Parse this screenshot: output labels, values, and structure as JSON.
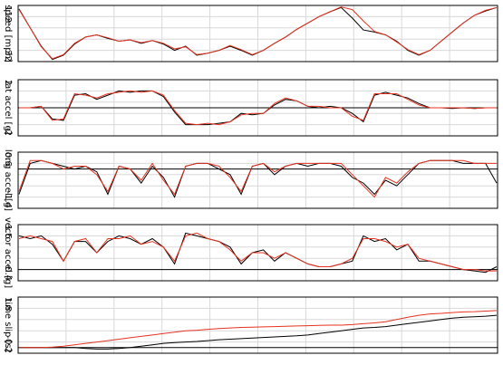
{
  "chart_data": [
    {
      "type": "line",
      "y_label": "speed [mph]",
      "ylim": [
        32,
        112
      ],
      "yticks": [
        32,
        112
      ],
      "grid": true,
      "zero_line": false,
      "series": [
        {
          "color": "#000000",
          "values": [
            107,
            80,
            54,
            35,
            41,
            57,
            67,
            70,
            65,
            61,
            63,
            58,
            62,
            57,
            48,
            54,
            41,
            44,
            48,
            54,
            48,
            41,
            48,
            58,
            67,
            78,
            87,
            96,
            103,
            109,
            94,
            77,
            74,
            70,
            61,
            48,
            41,
            48,
            61,
            74,
            87,
            98,
            104,
            109
          ]
        },
        {
          "color": "#e8321e",
          "values": [
            106,
            80,
            53,
            36,
            42,
            58,
            67,
            70,
            66,
            61,
            63,
            59,
            62,
            58,
            50,
            53,
            42,
            44,
            48,
            55,
            49,
            42,
            48,
            58,
            67,
            78,
            87,
            96,
            103,
            110,
            106,
            90,
            75,
            70,
            60,
            49,
            42,
            48,
            61,
            74,
            87,
            98,
            105,
            109
          ]
        }
      ]
    },
    {
      "type": "line",
      "y_label": "lat accel [g]",
      "ylim": [
        -2,
        2
      ],
      "yticks": [
        -2,
        2
      ],
      "grid": true,
      "zero_line": true,
      "series": [
        {
          "color": "#000000",
          "values": [
            0,
            0,
            0.1,
            -0.8,
            -0.9,
            0.9,
            1.0,
            0.6,
            0.9,
            1.2,
            1.1,
            1.2,
            1.2,
            0.8,
            -0.3,
            -1.2,
            -1.2,
            -1.2,
            -1.1,
            -1.0,
            -0.4,
            -0.5,
            -0.4,
            0.2,
            0.6,
            0.5,
            0.1,
            0.0,
            0.1,
            0.0,
            -0.4,
            -1.0,
            0.9,
            1.1,
            0.9,
            0.7,
            0.3,
            0.0,
            0.0,
            -0.05,
            0,
            -0.05,
            0,
            0
          ]
        },
        {
          "color": "#e8321e",
          "values": [
            0,
            0,
            0.1,
            -0.9,
            -0.8,
            1.0,
            0.9,
            0.7,
            1.0,
            1.1,
            1.2,
            1.1,
            1.2,
            0.9,
            -0.2,
            -1.1,
            -1.2,
            -1.1,
            -1.2,
            -1.0,
            -0.5,
            -0.4,
            -0.4,
            0.3,
            0.7,
            0.5,
            0.1,
            0.1,
            0.0,
            0.0,
            -0.6,
            -0.9,
            1.0,
            1.0,
            1.0,
            0.6,
            0.2,
            0.0,
            0.0,
            0.0,
            0,
            -0.05,
            0,
            0.0
          ]
        }
      ]
    },
    {
      "type": "line",
      "y_label": "long accel [g]",
      "ylim": [
        -1.4,
        0.6
      ],
      "yticks": [
        -1.4,
        0.6
      ],
      "grid": true,
      "zero_line": true,
      "series": [
        {
          "color": "#000000",
          "values": [
            -0.9,
            0.2,
            0.3,
            0.2,
            0.1,
            0.0,
            0.1,
            -0.1,
            -0.9,
            0.1,
            0.0,
            -0.5,
            0.1,
            -0.3,
            -1.0,
            0.1,
            0.2,
            0.2,
            0.0,
            -0.2,
            -0.9,
            0.1,
            0.2,
            -0.2,
            0.1,
            0.2,
            0.1,
            0.2,
            0.2,
            0.1,
            -0.3,
            -0.5,
            -0.9,
            -0.4,
            -0.6,
            -0.2,
            0.2,
            0.3,
            0.3,
            0.3,
            0.2,
            0.2,
            0.2,
            -0.5
          ]
        },
        {
          "color": "#e8321e",
          "values": [
            -0.8,
            0.3,
            0.3,
            0.2,
            0.0,
            0.1,
            0.1,
            -0.2,
            -0.8,
            0.1,
            0.0,
            -0.4,
            0.2,
            -0.4,
            -0.9,
            0.1,
            0.2,
            0.2,
            0.1,
            -0.3,
            -0.8,
            0.1,
            0.2,
            -0.1,
            0.1,
            0.2,
            0.2,
            0.2,
            0.2,
            0.2,
            -0.2,
            -0.6,
            -1.0,
            -0.3,
            -0.5,
            -0.1,
            0.2,
            0.3,
            0.3,
            0.3,
            0.3,
            0.2,
            0.2,
            0.2
          ]
        }
      ]
    },
    {
      "type": "line",
      "y_label": "vector accel [g]",
      "ylim": [
        -0.4,
        1.6
      ],
      "yticks": [
        -0.4,
        1.6
      ],
      "grid": true,
      "zero_line": true,
      "series": [
        {
          "color": "#000000",
          "values": [
            1.2,
            1.1,
            1.2,
            0.9,
            0.3,
            1.0,
            1.0,
            0.6,
            1.0,
            1.2,
            1.1,
            0.9,
            1.1,
            0.8,
            0.2,
            1.3,
            1.2,
            1.1,
            1.0,
            0.8,
            0.2,
            0.6,
            0.7,
            0.3,
            0.6,
            0.4,
            0.2,
            0.1,
            0.1,
            0.2,
            0.3,
            1.2,
            1.0,
            1.1,
            0.7,
            0.9,
            0.3,
            0.3,
            0.2,
            0.1,
            0.0,
            -0.05,
            -0.1,
            0.1
          ]
        },
        {
          "color": "#e8321e",
          "values": [
            1.1,
            1.2,
            1.1,
            1.0,
            0.3,
            1.0,
            1.1,
            0.6,
            1.1,
            1.1,
            1.2,
            0.9,
            1.0,
            0.8,
            0.3,
            1.2,
            1.3,
            1.1,
            1.0,
            0.7,
            0.3,
            0.6,
            0.6,
            0.4,
            0.6,
            0.4,
            0.2,
            0.1,
            0.1,
            0.2,
            0.4,
            1.1,
            1.1,
            1.0,
            0.8,
            0.9,
            0.4,
            0.3,
            0.2,
            0.1,
            0.0,
            0.0,
            -0.05,
            -0.05
          ]
        }
      ]
    },
    {
      "type": "line",
      "y_label": "time slip [s]",
      "ylim": [
        -0.2,
        1.8
      ],
      "yticks": [
        -0.2,
        1.8
      ],
      "grid": true,
      "zero_line": true,
      "series": [
        {
          "color": "#000000",
          "values": [
            0,
            0,
            0,
            0,
            0,
            0,
            -0.03,
            -0.05,
            -0.05,
            -0.03,
            0,
            0.05,
            0.1,
            0.15,
            0.18,
            0.2,
            0.22,
            0.25,
            0.28,
            0.3,
            0.32,
            0.34,
            0.36,
            0.38,
            0.4,
            0.42,
            0.45,
            0.5,
            0.55,
            0.6,
            0.65,
            0.7,
            0.72,
            0.75,
            0.8,
            0.85,
            0.9,
            0.95,
            1.0,
            1.05,
            1.08,
            1.1,
            1.12,
            1.15
          ]
        },
        {
          "color": "#e8321e",
          "values": [
            0,
            0,
            0,
            0.02,
            0.05,
            0.1,
            0.15,
            0.2,
            0.25,
            0.3,
            0.35,
            0.4,
            0.45,
            0.5,
            0.55,
            0.6,
            0.62,
            0.65,
            0.68,
            0.7,
            0.72,
            0.73,
            0.74,
            0.75,
            0.76,
            0.77,
            0.78,
            0.79,
            0.8,
            0.8,
            0.82,
            0.85,
            0.88,
            0.92,
            1.0,
            1.08,
            1.15,
            1.2,
            1.22,
            1.25,
            1.27,
            1.28,
            1.3,
            1.32
          ]
        }
      ]
    }
  ]
}
